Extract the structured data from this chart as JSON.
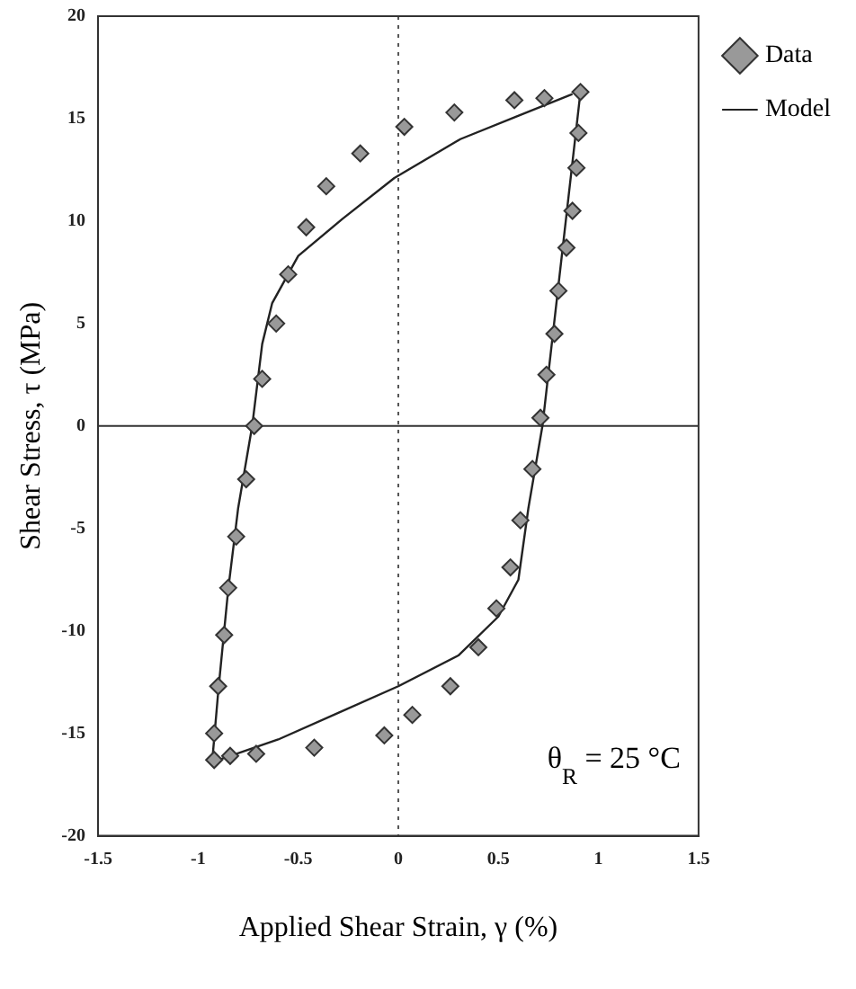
{
  "chart_data": {
    "type": "scatter",
    "xlabel": "Applied Shear Strain, γ (%)",
    "ylabel": "Shear Stress, τ (MPa)",
    "xlim": [
      -1.5,
      1.5
    ],
    "xticks": [
      -1.5,
      -1,
      -0.5,
      0,
      0.5,
      1,
      1.5
    ],
    "ylim": [
      -20,
      20
    ],
    "yticks": [
      -20,
      -15,
      -10,
      -5,
      0,
      5,
      10,
      15,
      20
    ],
    "grid": false,
    "legend": "top right",
    "ref_lines": [
      {
        "axis": "x",
        "value": 0,
        "line_style": "dotted",
        "color": "#555555"
      },
      {
        "axis": "y",
        "value": 0,
        "line_style": "solid",
        "color": "#333333"
      }
    ],
    "annotations": [
      "θ$_{R}$ = 25 °C"
    ],
    "series": [
      {
        "name": "Data",
        "type": "scatter",
        "marker": "diamond",
        "color": "#999999",
        "x": [
          0.91,
          0.9,
          0.89,
          0.87,
          0.84,
          0.8,
          0.78,
          0.74,
          0.71,
          0.67,
          0.61,
          0.56,
          0.49,
          0.4,
          0.26,
          0.07,
          -0.07,
          -0.42,
          -0.71,
          -0.84,
          -0.92,
          -0.92,
          -0.9,
          -0.87,
          -0.85,
          -0.81,
          -0.76,
          -0.72,
          -0.68,
          -0.61,
          -0.55,
          -0.46,
          -0.36,
          -0.19,
          0.03,
          0.28,
          0.58,
          0.73
        ],
        "values": [
          16.3,
          14.3,
          12.6,
          10.5,
          8.7,
          6.6,
          4.5,
          2.5,
          0.4,
          -2.1,
          -4.6,
          -6.9,
          -8.9,
          -10.8,
          -12.7,
          -14.1,
          -15.1,
          -15.7,
          -16,
          -16.1,
          -16.3,
          -15,
          -12.7,
          -10.2,
          -7.9,
          -5.4,
          -2.6,
          0,
          2.3,
          5,
          7.4,
          9.7,
          11.7,
          13.3,
          14.6,
          15.3,
          15.9,
          16
        ]
      },
      {
        "name": "Model",
        "type": "line",
        "marker": "none",
        "line_style": "solid",
        "color": "#222222",
        "x": [
          0.91,
          0.72,
          0.65,
          0.6,
          0.5,
          0.3,
          0,
          -0.3,
          -0.6,
          -0.93,
          -0.9,
          -0.85,
          -0.8,
          -0.73,
          -0.68,
          -0.63,
          -0.5,
          -0.28,
          -0.02,
          0.31,
          0.59,
          0.87
        ],
        "values": [
          16.3,
          0,
          -4,
          -7.5,
          -9.3,
          -11.2,
          -12.7,
          -14,
          -15.3,
          -16.4,
          -13,
          -8,
          -4,
          0,
          4,
          6,
          8.3,
          10.1,
          12.1,
          14,
          15.1,
          16.2
        ]
      }
    ]
  }
}
